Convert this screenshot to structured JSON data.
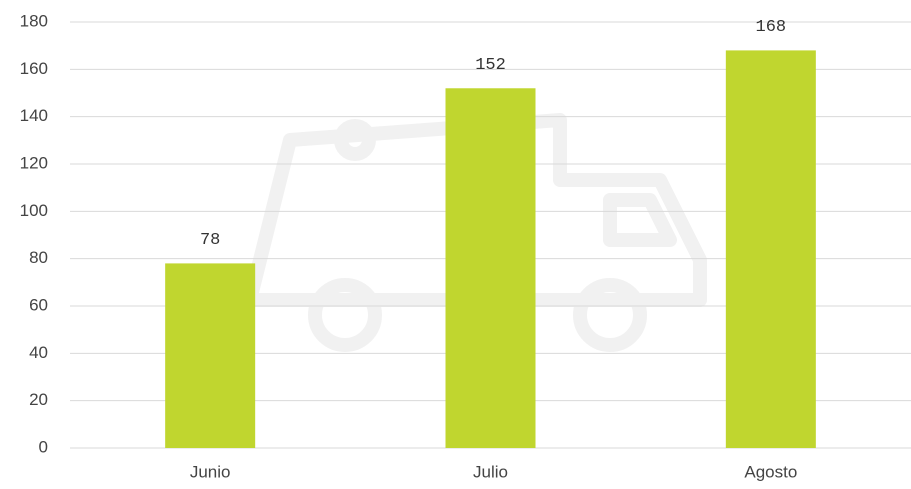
{
  "chart_data": {
    "type": "bar",
    "categories": [
      "Junio",
      "Julio",
      "Agosto"
    ],
    "values": [
      78,
      152,
      168
    ],
    "color": "#c0d62f",
    "ylim": [
      0,
      180
    ],
    "yticks": [
      0,
      20,
      40,
      60,
      80,
      100,
      120,
      140,
      160,
      180
    ],
    "grid": true
  }
}
